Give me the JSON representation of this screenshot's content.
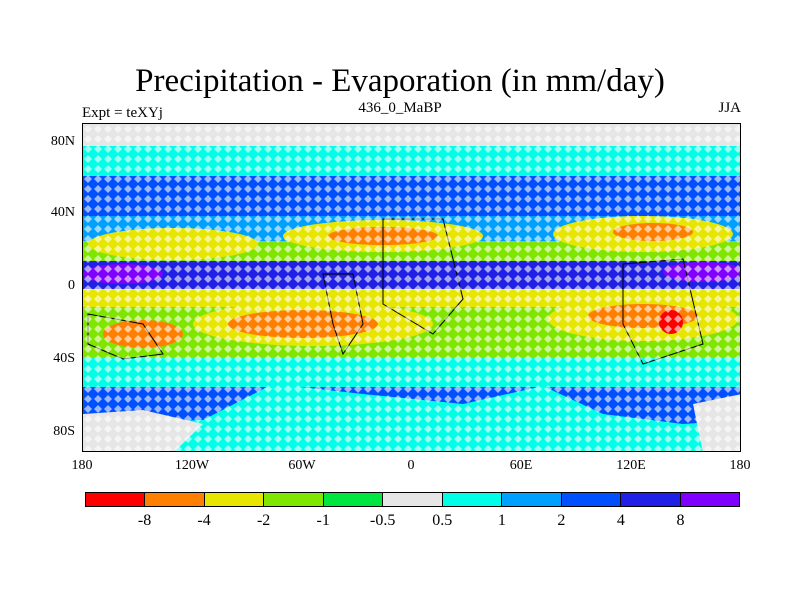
{
  "title": "Precipitation - Evaporation (in mm/day)",
  "subtitle_left": "Expt = teXYj",
  "subtitle_center": "436_0_MaBP",
  "subtitle_right": "JJA",
  "y_axis_labels": [
    "80N",
    "40N",
    "0",
    "40S",
    "80S"
  ],
  "x_axis_labels": [
    "180",
    "120W",
    "60W",
    "0",
    "60E",
    "120E",
    "180"
  ],
  "colorbar": {
    "colors": [
      "#ff0000",
      "#ff8000",
      "#e6e600",
      "#80e600",
      "#00e640",
      "#e6e6e6",
      "#00ffe6",
      "#00a0ff",
      "#0050ff",
      "#2020e6",
      "#8000ff"
    ],
    "labels": [
      "-8",
      "-4",
      "-2",
      "-1",
      "-0.5",
      "0.5",
      "1",
      "2",
      "4",
      "8"
    ]
  }
}
